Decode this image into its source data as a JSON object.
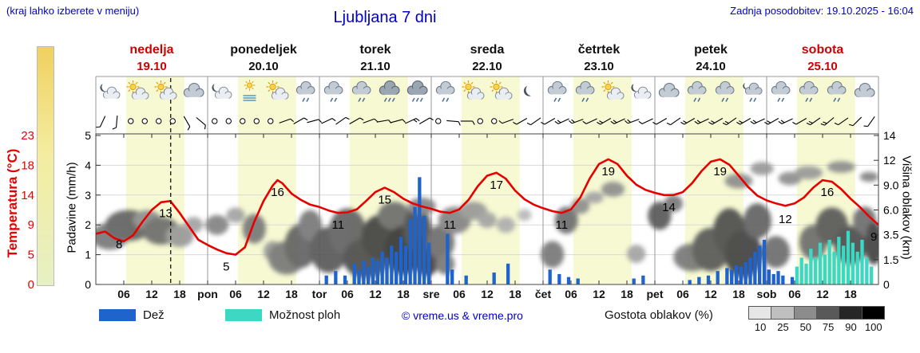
{
  "header": {
    "hint": "(kraj lahko izberete v meniju)",
    "title": "Ljubljana 7 dni",
    "updated": "Zadnja posodobitev: 19.10.2025 - 16:04"
  },
  "colors": {
    "accent_blue": "#0000cc",
    "red": "#d40000",
    "temp_line": "#e60000",
    "rain": "#1f63cc",
    "showers": "#3bd9c4",
    "day_band": "#f6f9d2",
    "grid": "#d9d9d9",
    "separator": "#9a9a9a",
    "frame": "#444444",
    "temp_strip": [
      "#f0d060",
      "#f4eda0",
      "#e6f0c4"
    ],
    "density_colors": [
      "#e6e6e6",
      "#bfbfbf",
      "#8c8c8c",
      "#595959",
      "#262626",
      "#000000"
    ]
  },
  "axes": {
    "temp": {
      "label": "Temperatura (°C)",
      "ticks": [
        "23",
        "18",
        "14",
        "9",
        "5",
        "0"
      ]
    },
    "precip": {
      "label": "Padavine (mm/h)",
      "ticks": [
        "5",
        "4",
        "3",
        "2",
        "1",
        "0"
      ]
    },
    "cloud": {
      "label": "Višina oblakov (km)",
      "ticks": [
        "14",
        "12",
        "9.0",
        "6.0",
        "3.5",
        "1.5",
        "0"
      ]
    },
    "x": {
      "hour_labels": [
        "06",
        "12",
        "18"
      ],
      "day_abbrevs": [
        "pon",
        "tor",
        "sre",
        "čet",
        "pet",
        "sob"
      ]
    }
  },
  "days": [
    {
      "name": "nedelja",
      "date": "19.10",
      "accent": "red",
      "icons": [
        "n-part",
        "d-part",
        "d-part",
        "cloud"
      ]
    },
    {
      "name": "ponedeljek",
      "date": "20.10",
      "accent": "black",
      "icons": [
        "n-part",
        "d-fog",
        "d-part",
        "rain"
      ]
    },
    {
      "name": "torek",
      "date": "21.10",
      "accent": "black",
      "icons": [
        "rain",
        "rain",
        "rain2",
        "rain2"
      ]
    },
    {
      "name": "sreda",
      "date": "22.10",
      "accent": "black",
      "icons": [
        "rain",
        "d-part",
        "d-part",
        "n-clear"
      ]
    },
    {
      "name": "četrtek",
      "date": "23.10",
      "accent": "black",
      "icons": [
        "rain",
        "rain",
        "d-part",
        "n-part"
      ]
    },
    {
      "name": "petek",
      "date": "24.10",
      "accent": "black",
      "icons": [
        "cloud",
        "rain",
        "rain",
        "n-rain"
      ]
    },
    {
      "name": "sobota",
      "date": "25.10",
      "accent": "red",
      "icons": [
        "rain",
        "rain",
        "rain",
        "cloud"
      ]
    }
  ],
  "legend": {
    "rain": "Dež",
    "showers": "Možnost ploh",
    "copyright": "© vreme.us & vreme.pro",
    "cloud_density": "Gostota oblakov (%)",
    "density_ticks": [
      "10",
      "25",
      "50",
      "75",
      "90",
      "100"
    ]
  },
  "chart_data": {
    "type": "meteogram",
    "hours_range": [
      0,
      168
    ],
    "now_hour": 16.07,
    "day_band_hours": [
      6.5,
      19
    ],
    "temp_axis_values": [
      0,
      5,
      9,
      14,
      18,
      23
    ],
    "precip_axis_values": [
      0,
      1,
      2,
      3,
      4,
      5
    ],
    "cloud_axis_km": [
      0,
      1.5,
      3.5,
      6,
      9,
      12,
      14
    ],
    "temperature": [
      [
        0,
        7.8
      ],
      [
        2,
        8.1
      ],
      [
        4,
        7.2
      ],
      [
        6,
        6.8
      ],
      [
        8,
        7.6
      ],
      [
        10,
        9.5
      ],
      [
        12,
        11.5
      ],
      [
        14,
        12.8
      ],
      [
        16,
        13
      ],
      [
        18,
        11
      ],
      [
        20,
        8.8
      ],
      [
        22,
        7
      ],
      [
        24,
        6.3
      ],
      [
        26,
        5.7
      ],
      [
        28,
        5.2
      ],
      [
        30,
        5
      ],
      [
        32,
        6
      ],
      [
        34,
        9.5
      ],
      [
        36,
        13
      ],
      [
        38,
        15.3
      ],
      [
        39,
        16
      ],
      [
        40,
        15.6
      ],
      [
        42,
        14.2
      ],
      [
        44,
        13.2
      ],
      [
        46,
        12.4
      ],
      [
        48,
        12
      ],
      [
        50,
        11.4
      ],
      [
        52,
        11
      ],
      [
        54,
        11.1
      ],
      [
        56,
        11.6
      ],
      [
        58,
        13
      ],
      [
        60,
        14.4
      ],
      [
        62,
        15
      ],
      [
        64,
        14.4
      ],
      [
        66,
        13.4
      ],
      [
        68,
        12.6
      ],
      [
        70,
        12.1
      ],
      [
        72,
        11.7
      ],
      [
        74,
        11.2
      ],
      [
        76,
        11
      ],
      [
        78,
        11.6
      ],
      [
        80,
        13.2
      ],
      [
        82,
        15.2
      ],
      [
        84,
        16.6
      ],
      [
        86,
        17
      ],
      [
        88,
        16.2
      ],
      [
        90,
        14.6
      ],
      [
        92,
        13.3
      ],
      [
        94,
        12.4
      ],
      [
        96,
        11.8
      ],
      [
        98,
        11.3
      ],
      [
        100,
        11
      ],
      [
        102,
        11.6
      ],
      [
        104,
        13.6
      ],
      [
        106,
        16.2
      ],
      [
        108,
        18.2
      ],
      [
        110,
        19
      ],
      [
        112,
        18.2
      ],
      [
        114,
        16.6
      ],
      [
        116,
        15.4
      ],
      [
        118,
        14.7
      ],
      [
        120,
        14.3
      ],
      [
        122,
        14
      ],
      [
        124,
        14
      ],
      [
        126,
        14.4
      ],
      [
        128,
        15.6
      ],
      [
        130,
        17.2
      ],
      [
        132,
        18.6
      ],
      [
        134,
        19
      ],
      [
        136,
        18.1
      ],
      [
        138,
        16.6
      ],
      [
        140,
        15.1
      ],
      [
        142,
        13.9
      ],
      [
        144,
        13.1
      ],
      [
        146,
        12.6
      ],
      [
        148,
        12.2
      ],
      [
        150,
        12.6
      ],
      [
        152,
        13.6
      ],
      [
        154,
        15
      ],
      [
        156,
        16
      ],
      [
        158,
        15.8
      ],
      [
        160,
        14.8
      ],
      [
        162,
        13.4
      ],
      [
        164,
        12
      ],
      [
        166,
        10.4
      ],
      [
        168,
        9
      ]
    ],
    "temp_labels": [
      [
        5,
        8
      ],
      [
        15,
        13
      ],
      [
        28,
        5
      ],
      [
        39,
        16
      ],
      [
        52,
        11
      ],
      [
        62,
        15
      ],
      [
        76,
        11
      ],
      [
        86,
        17
      ],
      [
        100,
        11
      ],
      [
        110,
        19
      ],
      [
        123,
        14
      ],
      [
        134,
        19
      ],
      [
        148,
        12
      ],
      [
        157,
        16
      ],
      [
        167,
        9
      ]
    ],
    "rain_bars": [
      [
        49,
        0.3
      ],
      [
        51,
        0.45
      ],
      [
        53,
        0.3
      ],
      [
        55,
        0.7
      ],
      [
        56,
        0.5
      ],
      [
        57,
        0.8
      ],
      [
        58,
        0.6
      ],
      [
        59,
        0.9
      ],
      [
        60,
        0.8
      ],
      [
        61,
        1.1
      ],
      [
        62,
        0.9
      ],
      [
        63,
        1.3
      ],
      [
        64,
        1.1
      ],
      [
        65,
        1.6
      ],
      [
        66,
        1.3
      ],
      [
        67,
        2.2
      ],
      [
        68,
        2.6
      ],
      [
        69,
        3.6
      ],
      [
        70,
        2.3
      ],
      [
        71,
        1.4
      ],
      [
        75,
        1.7
      ],
      [
        76,
        0.5
      ],
      [
        79,
        0.3
      ],
      [
        85,
        0.4
      ],
      [
        88,
        0.7
      ],
      [
        97,
        0.5
      ],
      [
        99,
        0.35
      ],
      [
        101,
        0.25
      ],
      [
        103,
        0.2
      ],
      [
        115,
        0.2
      ],
      [
        117,
        0.3
      ],
      [
        127,
        0.15
      ],
      [
        129,
        0.25
      ],
      [
        131,
        0.3
      ],
      [
        133,
        0.45
      ],
      [
        135,
        0.55
      ],
      [
        136,
        0.5
      ],
      [
        137,
        0.65
      ],
      [
        138,
        0.6
      ],
      [
        139,
        0.75
      ],
      [
        140,
        0.9
      ],
      [
        141,
        1.1
      ],
      [
        142,
        1.3
      ],
      [
        143,
        1.5
      ],
      [
        144,
        0.5
      ],
      [
        145,
        0.35
      ],
      [
        146,
        0.45
      ],
      [
        147,
        0.3
      ],
      [
        149,
        0.25
      ]
    ],
    "shower_bars": [
      [
        150,
        0.6
      ],
      [
        151,
        0.9
      ],
      [
        152,
        0.7
      ],
      [
        153,
        1.2
      ],
      [
        154,
        0.9
      ],
      [
        155,
        1.4
      ],
      [
        156,
        1.0
      ],
      [
        157,
        1.5
      ],
      [
        158,
        1.1
      ],
      [
        159,
        1.6
      ],
      [
        160,
        1.3
      ],
      [
        161,
        1.8
      ],
      [
        162,
        1.4
      ],
      [
        163,
        1.1
      ],
      [
        164,
        1.5
      ],
      [
        165,
        0.9
      ],
      [
        166,
        0.6
      ]
    ],
    "clouds": [
      [
        3,
        3.5,
        4,
        1.2,
        55
      ],
      [
        7,
        4.5,
        5,
        1.5,
        65
      ],
      [
        11,
        5,
        3,
        1,
        45
      ],
      [
        14,
        4,
        4,
        1.3,
        60
      ],
      [
        18,
        3.5,
        3,
        1,
        40
      ],
      [
        21,
        4.5,
        2,
        0.8,
        35
      ],
      [
        26,
        4.5,
        2.5,
        1,
        50
      ],
      [
        30,
        5.5,
        2,
        0.8,
        35
      ],
      [
        34,
        4.2,
        2.5,
        1.4,
        55
      ],
      [
        38,
        2.2,
        2,
        0.8,
        40
      ],
      [
        41,
        1.8,
        4,
        1.2,
        55
      ],
      [
        44,
        2.8,
        3.5,
        1.8,
        65
      ],
      [
        46,
        4.5,
        2.5,
        1.5,
        55
      ],
      [
        50,
        2.5,
        4,
        1.8,
        70
      ],
      [
        54,
        4,
        4,
        2.2,
        65
      ],
      [
        58,
        1.8,
        5,
        1.4,
        75
      ],
      [
        61,
        3.5,
        4,
        2,
        80
      ],
      [
        64,
        5.5,
        3.5,
        1.5,
        60
      ],
      [
        66,
        2.5,
        4,
        1.9,
        85
      ],
      [
        69,
        4.2,
        3,
        2.3,
        75
      ],
      [
        70,
        6.5,
        3,
        1,
        50
      ],
      [
        71,
        2,
        3,
        1.5,
        80
      ],
      [
        74,
        3,
        3,
        1.5,
        60
      ],
      [
        75,
        1.3,
        2,
        0.7,
        55
      ],
      [
        77,
        5,
        3.5,
        1.4,
        50
      ],
      [
        81,
        6,
        3,
        1,
        40
      ],
      [
        84,
        5,
        2,
        0.8,
        35
      ],
      [
        88,
        4.5,
        2,
        0.8,
        30
      ],
      [
        92,
        5.5,
        1.5,
        0.6,
        25
      ],
      [
        98,
        2,
        2.5,
        1,
        55
      ],
      [
        101,
        5,
        2.5,
        1.4,
        60
      ],
      [
        104,
        6.5,
        2,
        0.9,
        45
      ],
      [
        107,
        7.5,
        2,
        0.7,
        35
      ],
      [
        111,
        8.5,
        2.5,
        0.9,
        45
      ],
      [
        116,
        2,
        2,
        0.7,
        35
      ],
      [
        121,
        5.5,
        2.5,
        1.5,
        70
      ],
      [
        124,
        6.8,
        2,
        1,
        55
      ],
      [
        128,
        1.8,
        4,
        1,
        55
      ],
      [
        132,
        2.5,
        4,
        1.7,
        70
      ],
      [
        136,
        4,
        3.5,
        2.2,
        75
      ],
      [
        139,
        2.2,
        4,
        1.8,
        80
      ],
      [
        142,
        5,
        3,
        1.8,
        65
      ],
      [
        138,
        9.5,
        3,
        0.9,
        45
      ],
      [
        143,
        11,
        2.5,
        0.8,
        40
      ],
      [
        146,
        2.2,
        3,
        1.2,
        60
      ],
      [
        149,
        9.8,
        2.5,
        0.8,
        45
      ],
      [
        153,
        10.5,
        3,
        0.8,
        40
      ],
      [
        154,
        3,
        3,
        1.5,
        60
      ],
      [
        158,
        4.5,
        3.5,
        1.8,
        70
      ],
      [
        162,
        2.8,
        3.5,
        1.6,
        75
      ],
      [
        165,
        5,
        2.5,
        1.4,
        60
      ],
      [
        167,
        3,
        2,
        1.8,
        80
      ],
      [
        160,
        11.2,
        3,
        0.7,
        45
      ],
      [
        166,
        10,
        2,
        0.6,
        50
      ]
    ],
    "wind": [
      [
        205,
        1
      ],
      [
        185,
        1
      ],
      "c",
      "c",
      "c",
      "c",
      [
        150,
        1
      ],
      [
        130,
        1
      ],
      "c",
      "c",
      "c",
      "c",
      "c",
      [
        70,
        1
      ],
      [
        60,
        1
      ],
      [
        75,
        1
      ],
      [
        65,
        1
      ],
      [
        55,
        1
      ],
      [
        60,
        1
      ],
      [
        70,
        1
      ],
      [
        80,
        1
      ],
      [
        75,
        1
      ],
      [
        65,
        2
      ],
      [
        60,
        1
      ],
      "c",
      [
        95,
        1
      ],
      [
        90,
        1
      ],
      "c",
      "c",
      [
        250,
        1
      ],
      [
        240,
        1
      ],
      [
        235,
        1
      ],
      [
        240,
        1
      ],
      [
        245,
        2
      ],
      [
        250,
        2
      ],
      [
        245,
        1
      ],
      [
        240,
        2
      ],
      [
        245,
        2
      ],
      [
        250,
        2
      ],
      [
        245,
        1
      ],
      [
        240,
        1
      ],
      [
        235,
        1
      ],
      [
        240,
        2
      ],
      [
        245,
        2
      ],
      [
        240,
        2
      ],
      [
        235,
        2
      ],
      [
        240,
        2
      ],
      [
        245,
        2
      ],
      [
        240,
        2
      ],
      [
        245,
        2
      ],
      [
        240,
        1
      ],
      [
        235,
        2
      ],
      [
        230,
        2
      ],
      [
        235,
        1
      ],
      [
        225,
        1
      ],
      [
        215,
        1
      ]
    ]
  }
}
